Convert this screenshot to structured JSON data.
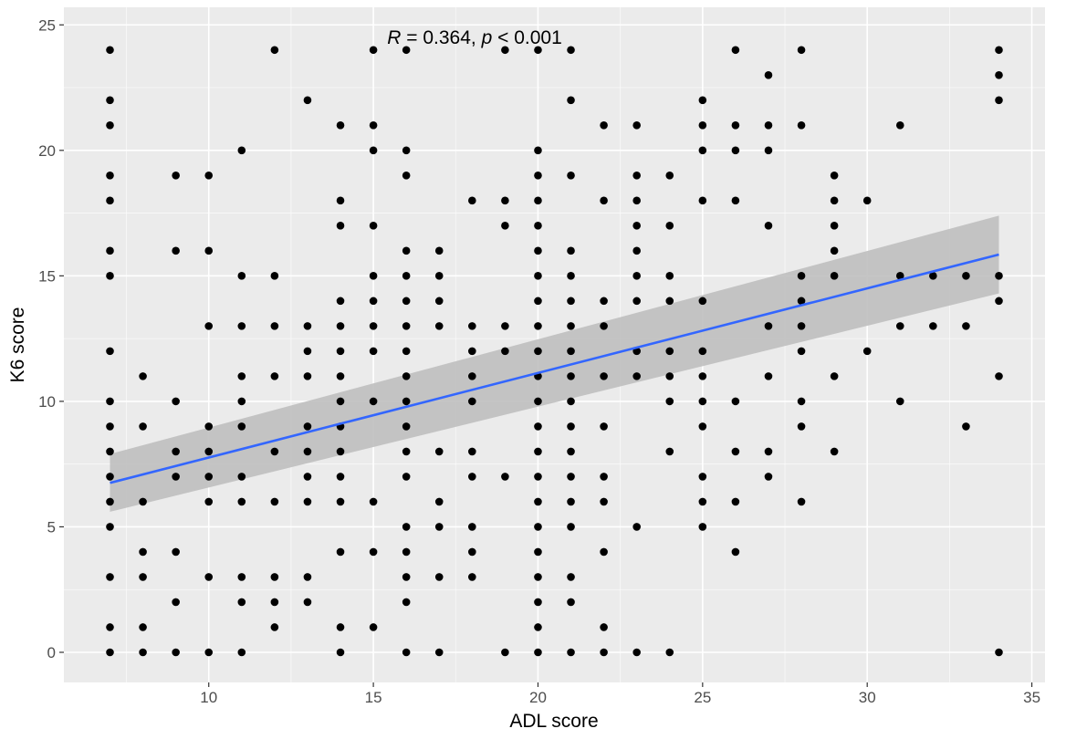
{
  "chart_data": {
    "type": "scatter",
    "xlabel": "ADL score",
    "ylabel": "K6 score",
    "xlim": [
      5.6,
      35.4
    ],
    "ylim": [
      -1.2,
      25.7
    ],
    "x_ticks": [
      10,
      15,
      20,
      25,
      30,
      35
    ],
    "y_ticks": [
      0,
      5,
      10,
      15,
      20,
      25
    ],
    "grid": true,
    "annotation": {
      "r_symbol": "R",
      "r_text": " = 0.364, ",
      "p_symbol": "p",
      "p_text": " < 0.001"
    },
    "colors": {
      "panel": "#ebebeb",
      "grid_major": "#ffffff",
      "points": "#000000",
      "fit_line": "#3366ff",
      "confidence_band": "#bfbfbf"
    },
    "fit": {
      "x": [
        7,
        34
      ],
      "y": [
        6.75,
        15.85
      ],
      "band_lower": [
        5.6,
        14.3
      ],
      "band_upper": [
        7.9,
        17.4
      ]
    },
    "points": [
      [
        7,
        24
      ],
      [
        7,
        22
      ],
      [
        7,
        21
      ],
      [
        7,
        19
      ],
      [
        7,
        18
      ],
      [
        7,
        16
      ],
      [
        7,
        15
      ],
      [
        7,
        12
      ],
      [
        7,
        10
      ],
      [
        7,
        9
      ],
      [
        7,
        8
      ],
      [
        7,
        7
      ],
      [
        7,
        6
      ],
      [
        7,
        5
      ],
      [
        7,
        3
      ],
      [
        7,
        1
      ],
      [
        7,
        0
      ],
      [
        8,
        11
      ],
      [
        8,
        9
      ],
      [
        8,
        6
      ],
      [
        8,
        4
      ],
      [
        8,
        3
      ],
      [
        8,
        1
      ],
      [
        8,
        0
      ],
      [
        9,
        19
      ],
      [
        9,
        16
      ],
      [
        9,
        10
      ],
      [
        9,
        8
      ],
      [
        9,
        7
      ],
      [
        9,
        4
      ],
      [
        9,
        2
      ],
      [
        9,
        0
      ],
      [
        10,
        19
      ],
      [
        10,
        16
      ],
      [
        10,
        13
      ],
      [
        10,
        9
      ],
      [
        10,
        8
      ],
      [
        10,
        7
      ],
      [
        10,
        6
      ],
      [
        10,
        3
      ],
      [
        10,
        0
      ],
      [
        11,
        20
      ],
      [
        11,
        15
      ],
      [
        11,
        13
      ],
      [
        11,
        11
      ],
      [
        11,
        10
      ],
      [
        11,
        9
      ],
      [
        11,
        7
      ],
      [
        11,
        6
      ],
      [
        11,
        3
      ],
      [
        11,
        2
      ],
      [
        11,
        0
      ],
      [
        12,
        24
      ],
      [
        12,
        15
      ],
      [
        12,
        13
      ],
      [
        12,
        11
      ],
      [
        12,
        8
      ],
      [
        12,
        6
      ],
      [
        12,
        3
      ],
      [
        12,
        2
      ],
      [
        12,
        1
      ],
      [
        13,
        22
      ],
      [
        13,
        13
      ],
      [
        13,
        12
      ],
      [
        13,
        11
      ],
      [
        13,
        9
      ],
      [
        13,
        8
      ],
      [
        13,
        7
      ],
      [
        13,
        6
      ],
      [
        13,
        3
      ],
      [
        13,
        2
      ],
      [
        14,
        21
      ],
      [
        14,
        18
      ],
      [
        14,
        17
      ],
      [
        14,
        14
      ],
      [
        14,
        13
      ],
      [
        14,
        12
      ],
      [
        14,
        11
      ],
      [
        14,
        10
      ],
      [
        14,
        9
      ],
      [
        14,
        8
      ],
      [
        14,
        7
      ],
      [
        14,
        6
      ],
      [
        14,
        4
      ],
      [
        14,
        1
      ],
      [
        14,
        0
      ],
      [
        15,
        24
      ],
      [
        15,
        21
      ],
      [
        15,
        20
      ],
      [
        15,
        17
      ],
      [
        15,
        15
      ],
      [
        15,
        14
      ],
      [
        15,
        13
      ],
      [
        15,
        12
      ],
      [
        15,
        10
      ],
      [
        15,
        6
      ],
      [
        15,
        4
      ],
      [
        15,
        1
      ],
      [
        16,
        24
      ],
      [
        16,
        20
      ],
      [
        16,
        19
      ],
      [
        16,
        16
      ],
      [
        16,
        15
      ],
      [
        16,
        14
      ],
      [
        16,
        13
      ],
      [
        16,
        12
      ],
      [
        16,
        11
      ],
      [
        16,
        10
      ],
      [
        16,
        9
      ],
      [
        16,
        8
      ],
      [
        16,
        7
      ],
      [
        16,
        5
      ],
      [
        16,
        4
      ],
      [
        16,
        3
      ],
      [
        16,
        2
      ],
      [
        16,
        0
      ],
      [
        17,
        16
      ],
      [
        17,
        15
      ],
      [
        17,
        14
      ],
      [
        17,
        13
      ],
      [
        17,
        8
      ],
      [
        17,
        6
      ],
      [
        17,
        5
      ],
      [
        17,
        3
      ],
      [
        17,
        0
      ],
      [
        18,
        18
      ],
      [
        18,
        13
      ],
      [
        18,
        12
      ],
      [
        18,
        11
      ],
      [
        18,
        10
      ],
      [
        18,
        8
      ],
      [
        18,
        7
      ],
      [
        18,
        5
      ],
      [
        18,
        4
      ],
      [
        18,
        3
      ],
      [
        19,
        24
      ],
      [
        19,
        18
      ],
      [
        19,
        17
      ],
      [
        19,
        13
      ],
      [
        19,
        12
      ],
      [
        19,
        7
      ],
      [
        19,
        0
      ],
      [
        20,
        24
      ],
      [
        20,
        20
      ],
      [
        20,
        19
      ],
      [
        20,
        18
      ],
      [
        20,
        17
      ],
      [
        20,
        16
      ],
      [
        20,
        15
      ],
      [
        20,
        14
      ],
      [
        20,
        13
      ],
      [
        20,
        12
      ],
      [
        20,
        11
      ],
      [
        20,
        10
      ],
      [
        20,
        9
      ],
      [
        20,
        8
      ],
      [
        20,
        7
      ],
      [
        20,
        6
      ],
      [
        20,
        5
      ],
      [
        20,
        4
      ],
      [
        20,
        3
      ],
      [
        20,
        2
      ],
      [
        20,
        1
      ],
      [
        20,
        0
      ],
      [
        21,
        24
      ],
      [
        21,
        22
      ],
      [
        21,
        19
      ],
      [
        21,
        16
      ],
      [
        21,
        15
      ],
      [
        21,
        14
      ],
      [
        21,
        13
      ],
      [
        21,
        12
      ],
      [
        21,
        11
      ],
      [
        21,
        10
      ],
      [
        21,
        9
      ],
      [
        21,
        8
      ],
      [
        21,
        7
      ],
      [
        21,
        6
      ],
      [
        21,
        5
      ],
      [
        21,
        3
      ],
      [
        21,
        2
      ],
      [
        21,
        0
      ],
      [
        22,
        21
      ],
      [
        22,
        18
      ],
      [
        22,
        14
      ],
      [
        22,
        13
      ],
      [
        22,
        11
      ],
      [
        22,
        9
      ],
      [
        22,
        7
      ],
      [
        22,
        6
      ],
      [
        22,
        4
      ],
      [
        22,
        1
      ],
      [
        22,
        0
      ],
      [
        23,
        21
      ],
      [
        23,
        19
      ],
      [
        23,
        18
      ],
      [
        23,
        17
      ],
      [
        23,
        16
      ],
      [
        23,
        15
      ],
      [
        23,
        14
      ],
      [
        23,
        12
      ],
      [
        23,
        11
      ],
      [
        23,
        5
      ],
      [
        23,
        0
      ],
      [
        24,
        19
      ],
      [
        24,
        17
      ],
      [
        24,
        15
      ],
      [
        24,
        14
      ],
      [
        24,
        12
      ],
      [
        24,
        11
      ],
      [
        24,
        10
      ],
      [
        24,
        8
      ],
      [
        24,
        0
      ],
      [
        25,
        22
      ],
      [
        25,
        21
      ],
      [
        25,
        20
      ],
      [
        25,
        18
      ],
      [
        25,
        14
      ],
      [
        25,
        12
      ],
      [
        25,
        11
      ],
      [
        25,
        10
      ],
      [
        25,
        9
      ],
      [
        25,
        7
      ],
      [
        25,
        6
      ],
      [
        25,
        5
      ],
      [
        26,
        24
      ],
      [
        26,
        21
      ],
      [
        26,
        20
      ],
      [
        26,
        18
      ],
      [
        26,
        10
      ],
      [
        26,
        8
      ],
      [
        26,
        6
      ],
      [
        26,
        4
      ],
      [
        27,
        23
      ],
      [
        27,
        21
      ],
      [
        27,
        20
      ],
      [
        27,
        17
      ],
      [
        27,
        13
      ],
      [
        27,
        11
      ],
      [
        27,
        8
      ],
      [
        27,
        7
      ],
      [
        28,
        24
      ],
      [
        28,
        21
      ],
      [
        28,
        15
      ],
      [
        28,
        14
      ],
      [
        28,
        13
      ],
      [
        28,
        12
      ],
      [
        28,
        10
      ],
      [
        28,
        9
      ],
      [
        28,
        6
      ],
      [
        29,
        19
      ],
      [
        29,
        18
      ],
      [
        29,
        17
      ],
      [
        29,
        16
      ],
      [
        29,
        15
      ],
      [
        29,
        11
      ],
      [
        29,
        8
      ],
      [
        30,
        18
      ],
      [
        30,
        12
      ],
      [
        31,
        21
      ],
      [
        31,
        15
      ],
      [
        31,
        13
      ],
      [
        31,
        10
      ],
      [
        32,
        15
      ],
      [
        32,
        13
      ],
      [
        33,
        15
      ],
      [
        33,
        13
      ],
      [
        33,
        9
      ],
      [
        34,
        24
      ],
      [
        34,
        23
      ],
      [
        34,
        22
      ],
      [
        34,
        15
      ],
      [
        34,
        14
      ],
      [
        34,
        11
      ],
      [
        34,
        0
      ]
    ]
  }
}
